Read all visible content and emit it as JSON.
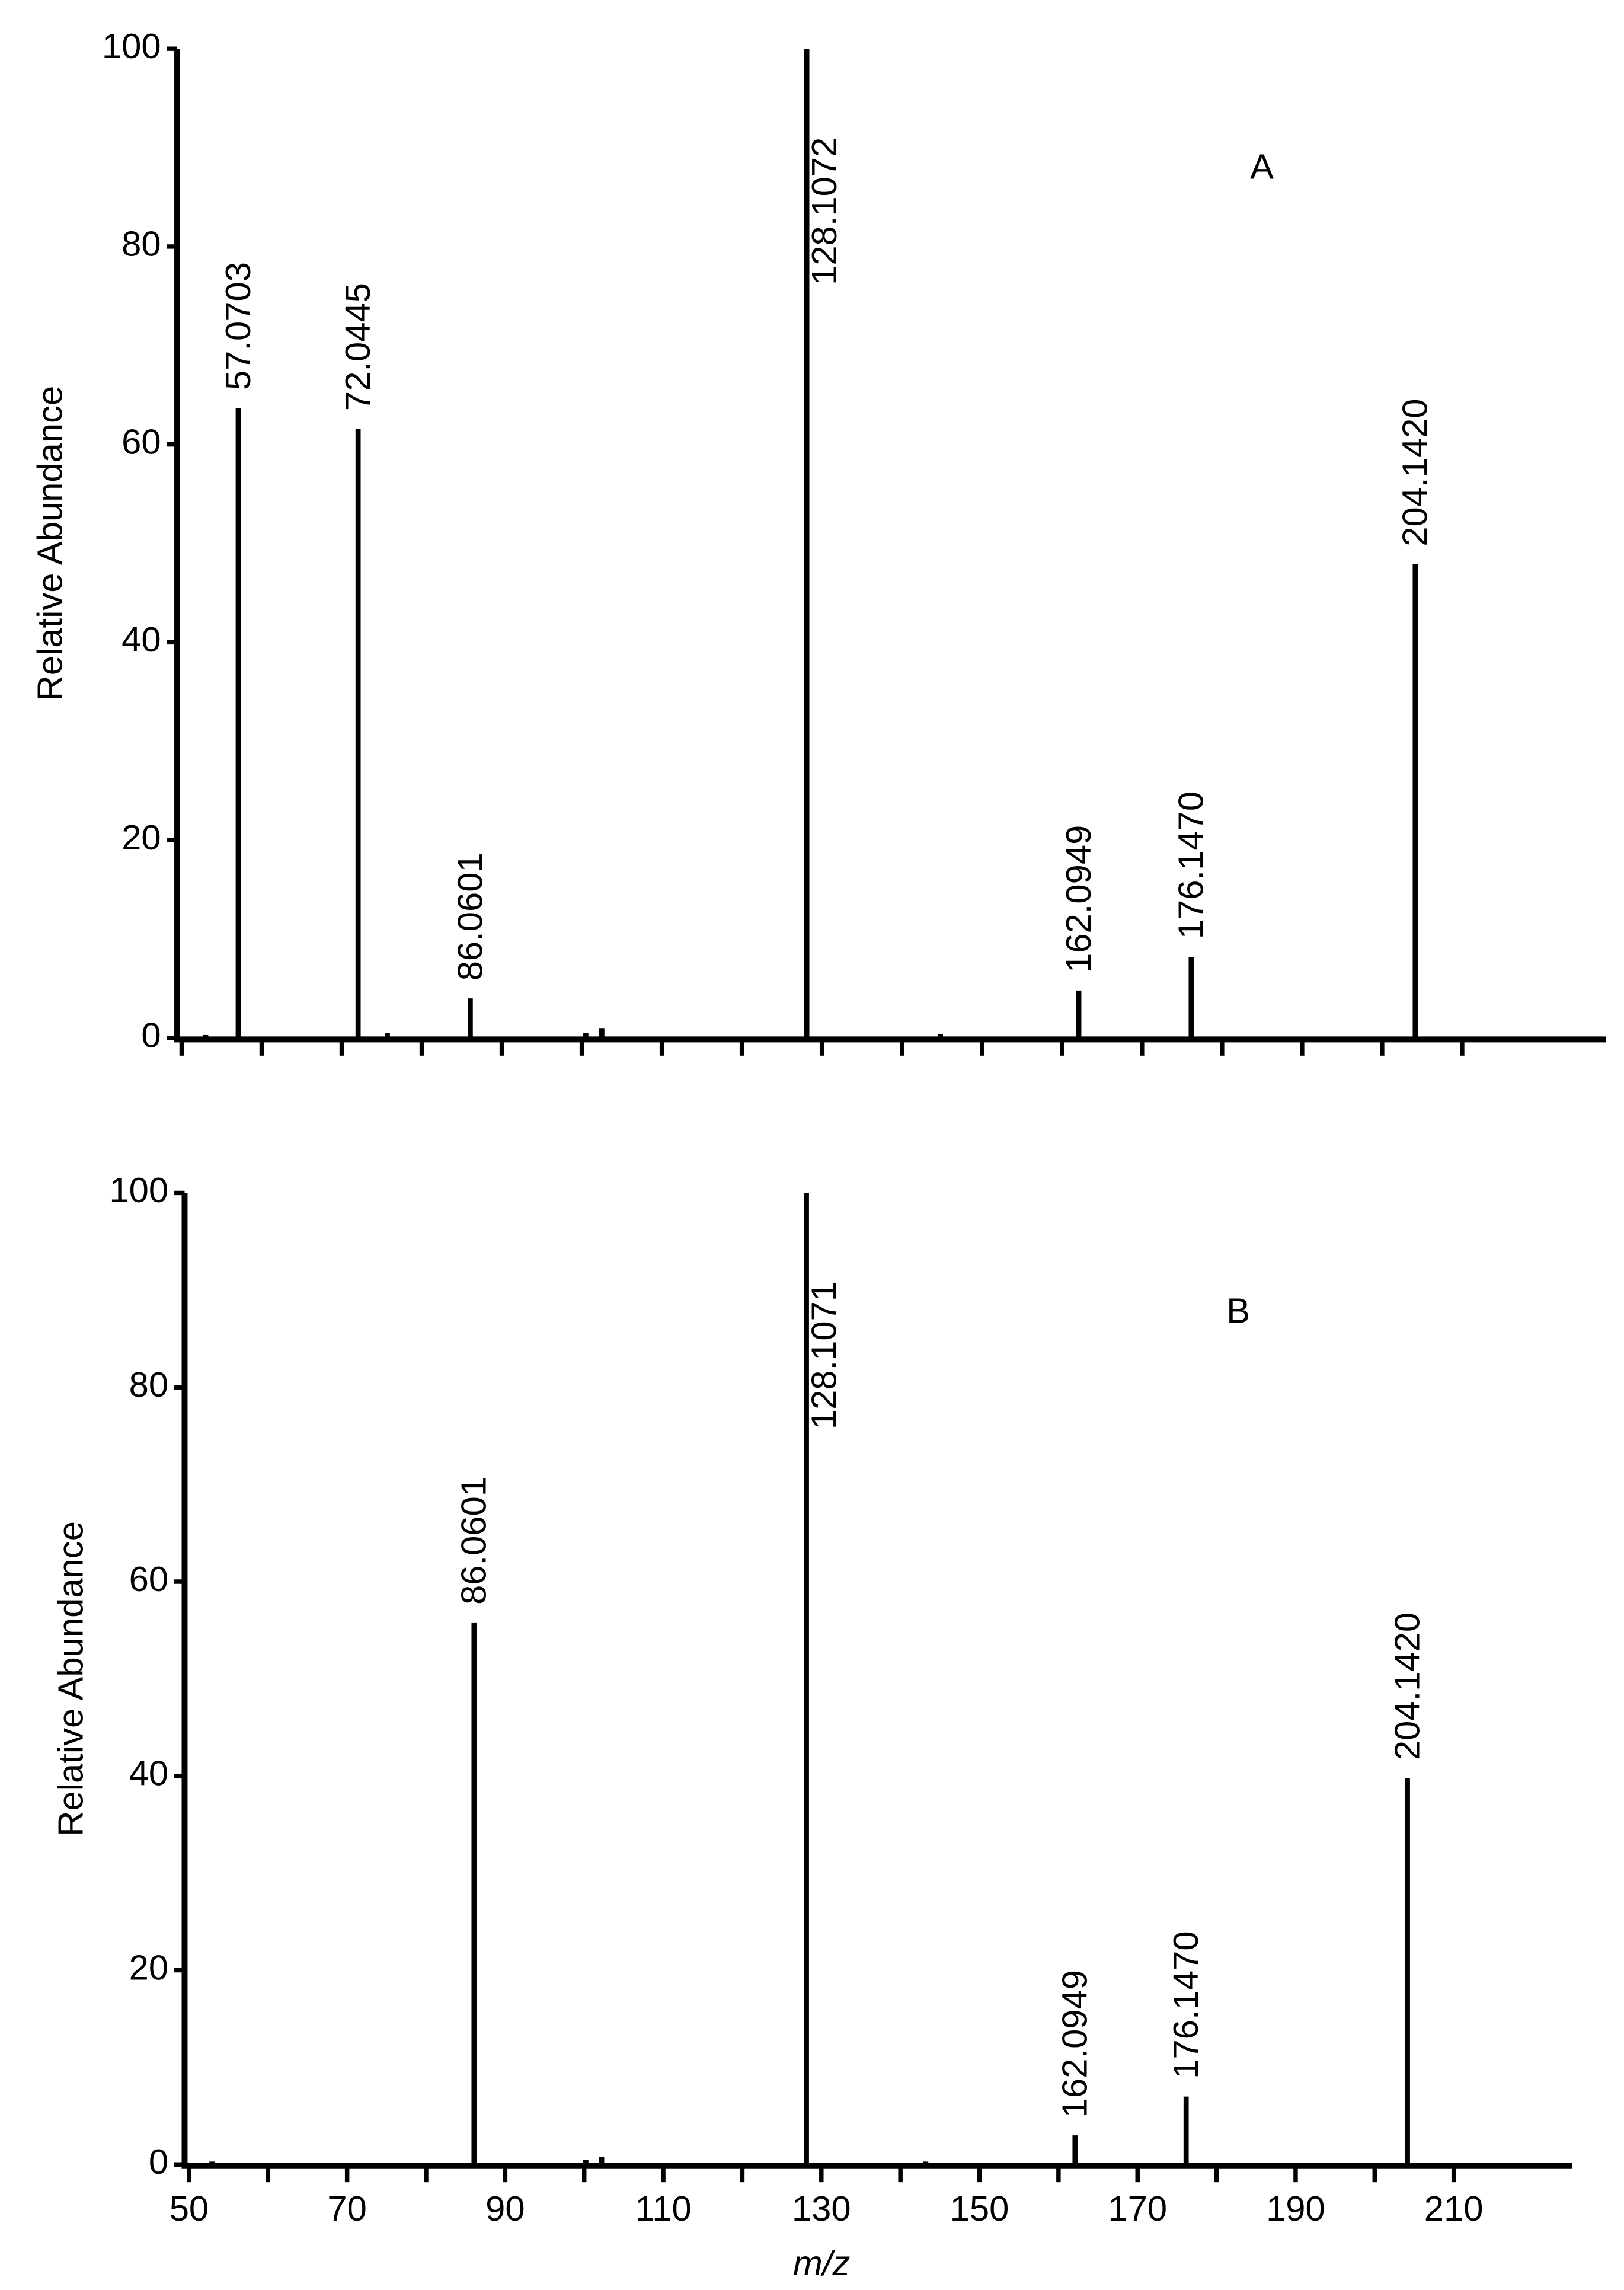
{
  "chart_data": [
    {
      "type": "stem",
      "panel_label": "A",
      "ylabel": "Relative Abundance",
      "x": [
        53,
        57.0703,
        72.0445,
        75.7,
        86.0601,
        100.5,
        102.5,
        128.1072,
        144.8,
        162.0949,
        176.147,
        204.142
      ],
      "x_labels": [
        null,
        "57.0703",
        "72.0445",
        null,
        "86.0601",
        null,
        null,
        "128.1072",
        null,
        "162.0949",
        "176.1470",
        "204.1420"
      ],
      "values": [
        0.3,
        63.7,
        61.6,
        0.5,
        4.0,
        0.5,
        1.0,
        100,
        0.4,
        4.8,
        8.2,
        47.9
      ],
      "color": "#000000",
      "xlim": [
        50,
        228
      ],
      "xminor_ticks": [
        50,
        60,
        70,
        80,
        90,
        100,
        110,
        120,
        130,
        140,
        150,
        160,
        170,
        180,
        190,
        200,
        210
      ],
      "ylim": [
        0,
        100
      ],
      "yticks": [
        0,
        20,
        40,
        60,
        80,
        100
      ]
    },
    {
      "type": "stem",
      "panel_label": "B",
      "ylabel": "Relative Abundance",
      "xlabel": "m/z",
      "x": [
        52.9,
        86.0601,
        100.2,
        102.2,
        128.1071,
        143.2,
        162.0949,
        176.147,
        204.142
      ],
      "x_labels": [
        null,
        "86.0601",
        null,
        null,
        "128.1071",
        null,
        "162.0949",
        "176.1470",
        "204.1420"
      ],
      "values": [
        0.3,
        55.8,
        0.5,
        0.8,
        100,
        0.3,
        3.0,
        7.0,
        39.8
      ],
      "color": "#000000",
      "xlim": [
        50,
        225
      ],
      "xticks": [
        50,
        70,
        90,
        110,
        130,
        150,
        170,
        190,
        210
      ],
      "xminor_ticks": [
        60,
        80,
        100,
        120,
        140,
        160,
        180,
        200
      ],
      "ylim": [
        0,
        100
      ],
      "yticks": [
        0,
        20,
        40,
        60,
        80,
        100
      ]
    }
  ]
}
